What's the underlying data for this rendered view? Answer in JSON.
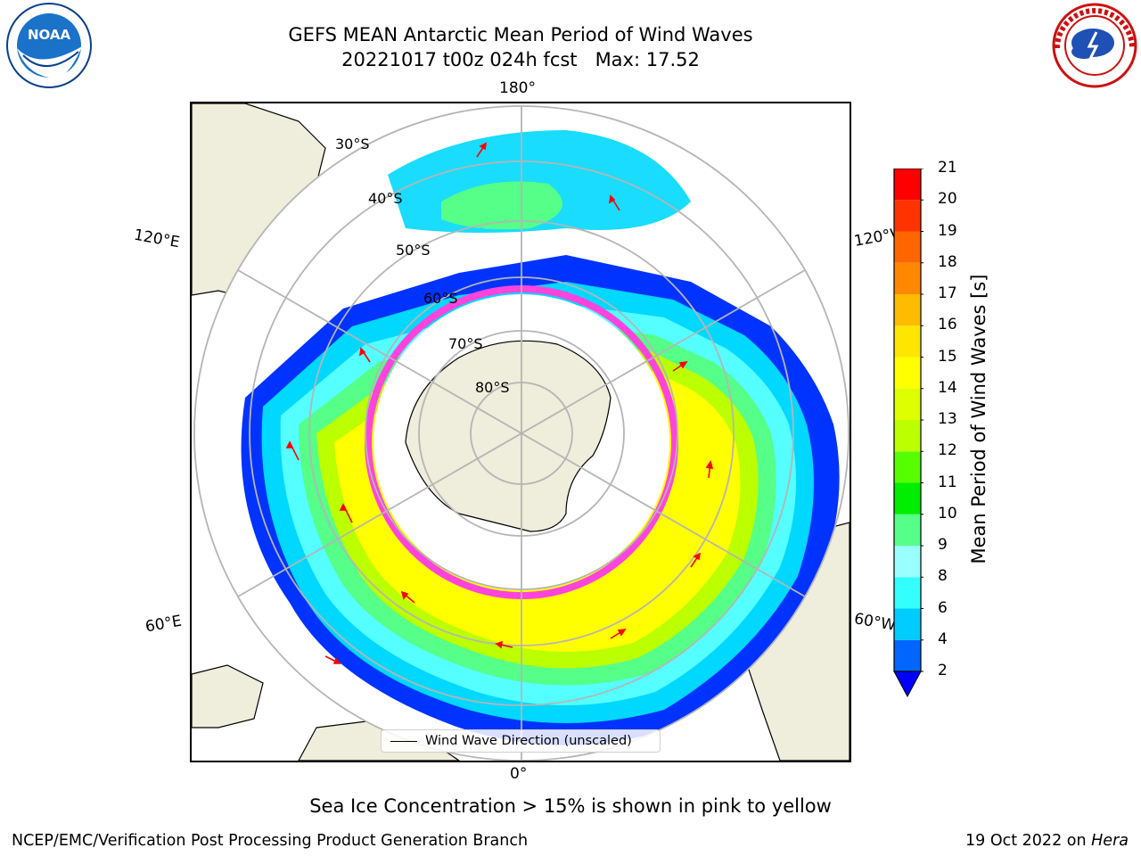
{
  "header": {
    "title_line1": "GEFS MEAN Antarctic Mean Period of Wind Waves",
    "title_line2": "20221017 t00z 024h fcst   Max: 17.52"
  },
  "logos": {
    "left": "noaa-logo",
    "left_text": "NOAA",
    "left_ring_text": "NATIONAL OCEANIC AND ATMOSPHERIC ADMINISTRATION · U.S. DEPARTMENT OF COMMERCE",
    "right": "national-weather-service-logo",
    "right_ring_text": "NATIONAL WEATHER SERVICE"
  },
  "map": {
    "projection": "south-polar-stereographic",
    "longitude_labels": {
      "top": "180°",
      "bottom": "0°",
      "left_upper": "120°E",
      "left_lower": "60°E",
      "right_upper": "120°W",
      "right_lower": "60°W"
    },
    "latitude_labels": [
      "30°S",
      "40°S",
      "50°S",
      "60°S",
      "70°S",
      "80°S"
    ],
    "legend_label": "Wind Wave Direction (unscaled)",
    "colors": {
      "land": "#efeddb",
      "gridline": "#b5b5b5",
      "arrow": "#ff0000",
      "sea_ice_edge": "#ff44dd"
    }
  },
  "colorbar": {
    "label": "Mean Period of Wind Waves [s]",
    "ticks": [
      "2",
      "4",
      "6",
      "8",
      "9",
      "10",
      "11",
      "12",
      "13",
      "14",
      "15",
      "16",
      "17",
      "18",
      "19",
      "20",
      "21"
    ],
    "under_color": "#0000ff",
    "colors": [
      "#0066ff",
      "#00ccff",
      "#33ffff",
      "#99ffff",
      "#55ff88",
      "#00ee00",
      "#55ff00",
      "#bbff00",
      "#ddff00",
      "#ffff00",
      "#ffe600",
      "#ffbb00",
      "#ff8800",
      "#ff6600",
      "#ff3300",
      "#ff0000"
    ]
  },
  "footer": {
    "ice_note": "Sea Ice Concentration > 15% is shown in pink to yellow",
    "producer": "NCEP/EMC/Verification Post Processing Product Generation Branch",
    "date": "19 Oct 2022 on ",
    "system": "Hera"
  }
}
